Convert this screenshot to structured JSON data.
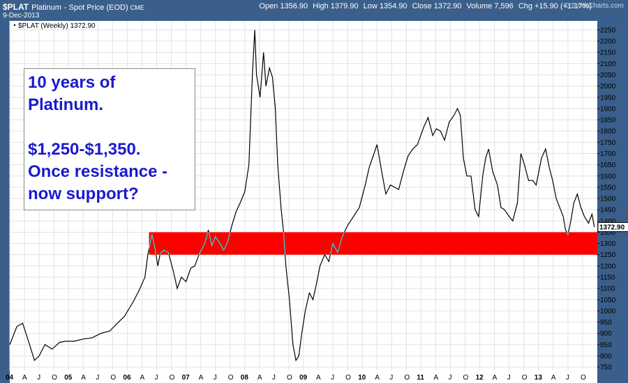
{
  "header": {
    "symbol": "$PLAT",
    "name": "Platinum",
    "desc": "- Spot Price (EOD)",
    "exchange": "CME",
    "date": "9-Dec-2013",
    "open": "Open 1356.90",
    "high": "High 1379.90",
    "low": "Low 1354.90",
    "close": "Close 1372.90",
    "volume": "Volume 7,596",
    "change": "Chg +15.90 (+1.17%)",
    "watermark": "© StockCharts.com"
  },
  "annotation": {
    "lines": [
      "10 years of",
      "Platinum.",
      "",
      "$1,250-$1,350.",
      "Once resistance -",
      "now support?"
    ]
  },
  "colors": {
    "background": "#ffffff",
    "frame": "#3a5f8a",
    "price_line": "#000000",
    "zone": "#ff0000",
    "highlight": "#2ee6e6",
    "grid": "#e2e2e2",
    "annotation_text": "#1a1acd"
  },
  "chart_data": {
    "type": "line",
    "series_label": "$PLAT (Weekly) 1372.90",
    "last_value_label": "1372.90",
    "last_value": 1372.9,
    "ylim": [
      735,
      2290
    ],
    "y_ticks": [
      750,
      800,
      850,
      900,
      950,
      1000,
      1050,
      1100,
      1150,
      1200,
      1250,
      1300,
      1350,
      1400,
      1450,
      1500,
      1550,
      1600,
      1650,
      1700,
      1750,
      1800,
      1850,
      1900,
      1950,
      2000,
      2050,
      2100,
      2150,
      2200,
      2250
    ],
    "xlim": [
      2004.0,
      2014.0
    ],
    "x_ticks": [
      {
        "t": 2004.0,
        "label": "04"
      },
      {
        "t": 2004.25,
        "label": "A"
      },
      {
        "t": 2004.5,
        "label": "J"
      },
      {
        "t": 2004.75,
        "label": "O"
      },
      {
        "t": 2005.0,
        "label": "05"
      },
      {
        "t": 2005.25,
        "label": "A"
      },
      {
        "t": 2005.5,
        "label": "J"
      },
      {
        "t": 2005.75,
        "label": "O"
      },
      {
        "t": 2006.0,
        "label": "06"
      },
      {
        "t": 2006.25,
        "label": "A"
      },
      {
        "t": 2006.5,
        "label": "J"
      },
      {
        "t": 2006.75,
        "label": "O"
      },
      {
        "t": 2007.0,
        "label": "07"
      },
      {
        "t": 2007.25,
        "label": "A"
      },
      {
        "t": 2007.5,
        "label": "J"
      },
      {
        "t": 2007.75,
        "label": "O"
      },
      {
        "t": 2008.0,
        "label": "08"
      },
      {
        "t": 2008.25,
        "label": "A"
      },
      {
        "t": 2008.5,
        "label": "J"
      },
      {
        "t": 2008.75,
        "label": "O"
      },
      {
        "t": 2009.0,
        "label": "09"
      },
      {
        "t": 2009.25,
        "label": "A"
      },
      {
        "t": 2009.5,
        "label": "J"
      },
      {
        "t": 2009.75,
        "label": "O"
      },
      {
        "t": 2010.0,
        "label": "10"
      },
      {
        "t": 2010.25,
        "label": "A"
      },
      {
        "t": 2010.5,
        "label": "J"
      },
      {
        "t": 2010.75,
        "label": "O"
      },
      {
        "t": 2011.0,
        "label": "11"
      },
      {
        "t": 2011.25,
        "label": "A"
      },
      {
        "t": 2011.5,
        "label": "J"
      },
      {
        "t": 2011.75,
        "label": "O"
      },
      {
        "t": 2012.0,
        "label": "12"
      },
      {
        "t": 2012.25,
        "label": "A"
      },
      {
        "t": 2012.5,
        "label": "J"
      },
      {
        "t": 2012.75,
        "label": "O"
      },
      {
        "t": 2013.0,
        "label": "13"
      },
      {
        "t": 2013.25,
        "label": "A"
      },
      {
        "t": 2013.5,
        "label": "J"
      },
      {
        "t": 2013.75,
        "label": "O"
      }
    ],
    "zone": {
      "low": 1250,
      "high": 1350,
      "start": 2006.37,
      "end": 2014.0
    },
    "grid": true,
    "price_points": [
      [
        2004.0,
        850
      ],
      [
        2004.12,
        930
      ],
      [
        2004.22,
        945
      ],
      [
        2004.3,
        880
      ],
      [
        2004.42,
        780
      ],
      [
        2004.5,
        800
      ],
      [
        2004.6,
        850
      ],
      [
        2004.72,
        830
      ],
      [
        2004.85,
        860
      ],
      [
        2004.95,
        865
      ],
      [
        2005.1,
        865
      ],
      [
        2005.25,
        875
      ],
      [
        2005.4,
        880
      ],
      [
        2005.55,
        900
      ],
      [
        2005.7,
        910
      ],
      [
        2005.85,
        950
      ],
      [
        2005.95,
        975
      ],
      [
        2006.1,
        1040
      ],
      [
        2006.2,
        1090
      ],
      [
        2006.3,
        1150
      ],
      [
        2006.35,
        1250
      ],
      [
        2006.42,
        1340
      ],
      [
        2006.47,
        1280
      ],
      [
        2006.52,
        1200
      ],
      [
        2006.56,
        1255
      ],
      [
        2006.62,
        1270
      ],
      [
        2006.7,
        1260
      ],
      [
        2006.78,
        1180
      ],
      [
        2006.85,
        1100
      ],
      [
        2006.92,
        1150
      ],
      [
        2007.0,
        1130
      ],
      [
        2007.08,
        1190
      ],
      [
        2007.15,
        1200
      ],
      [
        2007.22,
        1250
      ],
      [
        2007.32,
        1300
      ],
      [
        2007.38,
        1360
      ],
      [
        2007.44,
        1290
      ],
      [
        2007.5,
        1330
      ],
      [
        2007.58,
        1300
      ],
      [
        2007.64,
        1270
      ],
      [
        2007.7,
        1300
      ],
      [
        2007.78,
        1380
      ],
      [
        2007.85,
        1440
      ],
      [
        2007.92,
        1480
      ],
      [
        2008.0,
        1530
      ],
      [
        2008.07,
        1650
      ],
      [
        2008.13,
        2050
      ],
      [
        2008.17,
        2250
      ],
      [
        2008.2,
        2050
      ],
      [
        2008.26,
        1950
      ],
      [
        2008.32,
        2150
      ],
      [
        2008.36,
        2000
      ],
      [
        2008.42,
        2080
      ],
      [
        2008.47,
        2040
      ],
      [
        2008.52,
        1900
      ],
      [
        2008.56,
        1650
      ],
      [
        2008.62,
        1450
      ],
      [
        2008.66,
        1350
      ],
      [
        2008.7,
        1200
      ],
      [
        2008.76,
        1050
      ],
      [
        2008.82,
        850
      ],
      [
        2008.87,
        780
      ],
      [
        2008.92,
        800
      ],
      [
        2008.97,
        900
      ],
      [
        2009.03,
        1000
      ],
      [
        2009.1,
        1080
      ],
      [
        2009.16,
        1050
      ],
      [
        2009.22,
        1120
      ],
      [
        2009.28,
        1200
      ],
      [
        2009.36,
        1250
      ],
      [
        2009.43,
        1220
      ],
      [
        2009.5,
        1300
      ],
      [
        2009.58,
        1260
      ],
      [
        2009.66,
        1330
      ],
      [
        2009.75,
        1380
      ],
      [
        2009.85,
        1420
      ],
      [
        2009.95,
        1460
      ],
      [
        2010.05,
        1560
      ],
      [
        2010.12,
        1640
      ],
      [
        2010.2,
        1700
      ],
      [
        2010.25,
        1740
      ],
      [
        2010.33,
        1620
      ],
      [
        2010.4,
        1520
      ],
      [
        2010.48,
        1560
      ],
      [
        2010.55,
        1550
      ],
      [
        2010.62,
        1540
      ],
      [
        2010.7,
        1620
      ],
      [
        2010.78,
        1690
      ],
      [
        2010.86,
        1720
      ],
      [
        2010.94,
        1740
      ],
      [
        2011.05,
        1820
      ],
      [
        2011.12,
        1860
      ],
      [
        2011.2,
        1780
      ],
      [
        2011.26,
        1810
      ],
      [
        2011.33,
        1800
      ],
      [
        2011.4,
        1760
      ],
      [
        2011.48,
        1840
      ],
      [
        2011.56,
        1870
      ],
      [
        2011.62,
        1900
      ],
      [
        2011.67,
        1870
      ],
      [
        2011.72,
        1680
      ],
      [
        2011.78,
        1600
      ],
      [
        2011.85,
        1600
      ],
      [
        2011.92,
        1450
      ],
      [
        2011.98,
        1420
      ],
      [
        2012.05,
        1600
      ],
      [
        2012.1,
        1680
      ],
      [
        2012.15,
        1720
      ],
      [
        2012.22,
        1620
      ],
      [
        2012.3,
        1560
      ],
      [
        2012.36,
        1460
      ],
      [
        2012.42,
        1450
      ],
      [
        2012.5,
        1420
      ],
      [
        2012.56,
        1400
      ],
      [
        2012.64,
        1480
      ],
      [
        2012.7,
        1700
      ],
      [
        2012.76,
        1650
      ],
      [
        2012.83,
        1580
      ],
      [
        2012.9,
        1580
      ],
      [
        2012.96,
        1560
      ],
      [
        2013.05,
        1680
      ],
      [
        2013.12,
        1720
      ],
      [
        2013.18,
        1640
      ],
      [
        2013.24,
        1580
      ],
      [
        2013.3,
        1500
      ],
      [
        2013.36,
        1460
      ],
      [
        2013.42,
        1420
      ],
      [
        2013.46,
        1360
      ],
      [
        2013.5,
        1340
      ],
      [
        2013.55,
        1400
      ],
      [
        2013.6,
        1480
      ],
      [
        2013.66,
        1520
      ],
      [
        2013.72,
        1460
      ],
      [
        2013.78,
        1420
      ],
      [
        2013.85,
        1390
      ],
      [
        2013.91,
        1430
      ],
      [
        2013.95,
        1372.9
      ]
    ]
  }
}
